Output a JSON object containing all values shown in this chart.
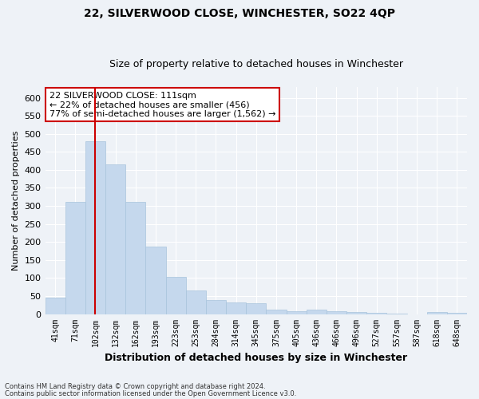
{
  "title": "22, SILVERWOOD CLOSE, WINCHESTER, SO22 4QP",
  "subtitle": "Size of property relative to detached houses in Winchester",
  "xlabel": "Distribution of detached houses by size in Winchester",
  "ylabel": "Number of detached properties",
  "bar_color": "#c5d8ed",
  "bar_edge_color": "#a8c4dc",
  "categories": [
    "41sqm",
    "71sqm",
    "102sqm",
    "132sqm",
    "162sqm",
    "193sqm",
    "223sqm",
    "253sqm",
    "284sqm",
    "314sqm",
    "345sqm",
    "375sqm",
    "405sqm",
    "436sqm",
    "466sqm",
    "496sqm",
    "527sqm",
    "557sqm",
    "587sqm",
    "618sqm",
    "648sqm"
  ],
  "values": [
    46,
    312,
    480,
    415,
    312,
    188,
    103,
    65,
    38,
    32,
    30,
    12,
    8,
    12,
    8,
    5,
    3,
    1,
    0,
    5,
    4
  ],
  "ylim": [
    0,
    630
  ],
  "yticks": [
    0,
    50,
    100,
    150,
    200,
    250,
    300,
    350,
    400,
    450,
    500,
    550,
    600
  ],
  "property_line_x": 2,
  "annotation_text_line1": "22 SILVERWOOD CLOSE: 111sqm",
  "annotation_text_line2": "← 22% of detached houses are smaller (456)",
  "annotation_text_line3": "77% of semi-detached houses are larger (1,562) →",
  "vline_color": "#cc0000",
  "annotation_box_facecolor": "#ffffff",
  "annotation_box_edgecolor": "#cc0000",
  "footer_line1": "Contains HM Land Registry data © Crown copyright and database right 2024.",
  "footer_line2": "Contains public sector information licensed under the Open Government Licence v3.0.",
  "background_color": "#eef2f7",
  "grid_color": "#ffffff"
}
